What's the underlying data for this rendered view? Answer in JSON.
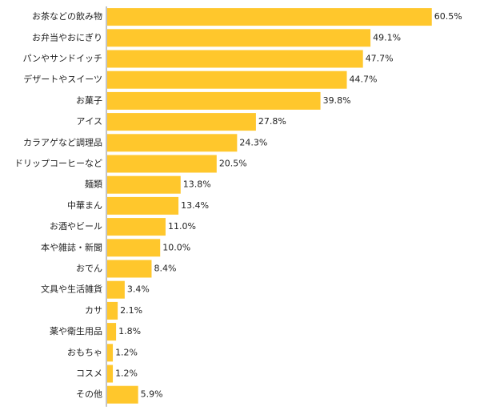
{
  "chart_data": {
    "type": "bar",
    "orientation": "horizontal",
    "categories": [
      "お茶などの飲み物",
      "お弁当やおにぎり",
      "パンやサンドイッチ",
      "デザートやスイーツ",
      "お菓子",
      "アイス",
      "カラアゲなど調理品",
      "ドリップコーヒーなど",
      "麺類",
      "中華まん",
      "お酒やビール",
      "本や雑誌・新聞",
      "おでん",
      "文具や生活雑貨",
      "カサ",
      "薬や衛生用品",
      "おもちゃ",
      "コスメ",
      "その他"
    ],
    "values": [
      60.5,
      49.1,
      47.7,
      44.7,
      39.8,
      27.8,
      24.3,
      20.5,
      13.8,
      13.4,
      11.0,
      10.0,
      8.4,
      3.4,
      2.1,
      1.8,
      1.2,
      1.2,
      5.9
    ],
    "value_labels": [
      "60.5%",
      "49.1%",
      "47.7%",
      "44.7%",
      "39.8%",
      "27.8%",
      "24.3%",
      "20.5%",
      "13.8%",
      "13.4%",
      "11.0%",
      "10.0%",
      "8.4%",
      "3.4%",
      "2.1%",
      "1.8%",
      "1.2%",
      "1.2%",
      "5.9%"
    ],
    "xlim": [
      0,
      65
    ],
    "grid": false,
    "bar_color": "#FFC72C"
  }
}
